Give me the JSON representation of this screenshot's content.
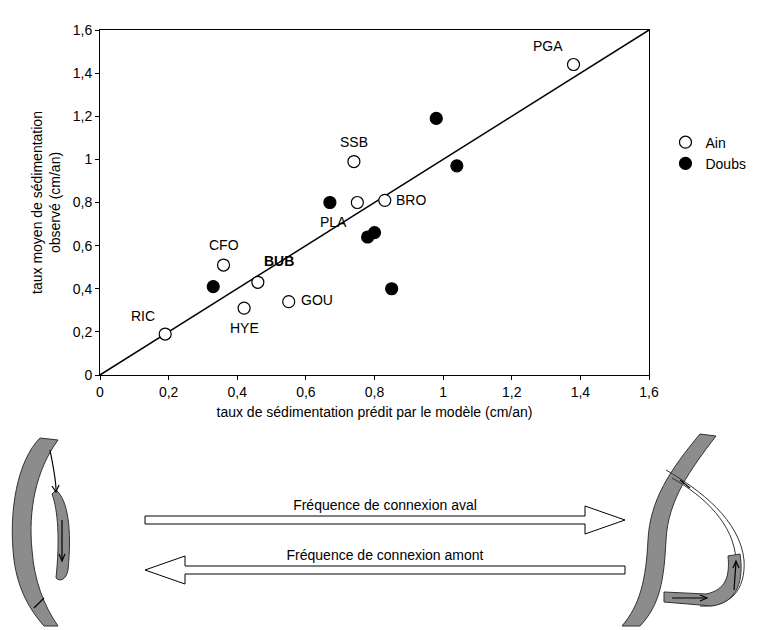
{
  "chart_data": {
    "type": "scatter",
    "x_label": "taux de sédimentation prédit par le modèle (cm/an)",
    "y_label": "taux moyen de sédimentation observé (cm/an)",
    "xlim": [
      0,
      1.6
    ],
    "ylim": [
      0,
      1.6
    ],
    "xticks": [
      0,
      {
        "value": 0.2,
        "label": "0,2"
      },
      {
        "value": 0.4,
        "label": "0,4"
      },
      {
        "value": 0.6,
        "label": "0,6"
      },
      {
        "value": 0.8,
        "label": "0,8"
      },
      1,
      {
        "value": 1.2,
        "label": "1,2"
      },
      {
        "value": 1.4,
        "label": "1,4"
      },
      {
        "value": 1.6,
        "label": "1,6"
      }
    ],
    "yticks": [
      0,
      {
        "value": 0.2,
        "label": "0,2"
      },
      {
        "value": 0.4,
        "label": "0,4"
      },
      {
        "value": 0.6,
        "label": "0,6"
      },
      {
        "value": 0.8,
        "label": "0,8"
      },
      1,
      {
        "value": 1.2,
        "label": "1,2"
      },
      {
        "value": 1.4,
        "label": "1,4"
      },
      {
        "value": 1.6,
        "label": "1,6"
      }
    ],
    "grid": false,
    "legend": "right",
    "reference_line": {
      "x": [
        0,
        1.6
      ],
      "y": [
        0,
        1.6
      ],
      "color": "#000000"
    },
    "series": [
      {
        "name": "Ain",
        "marker": "open_circle",
        "color": "#000000",
        "x": [
          1.38,
          0.74,
          0.75,
          0.83,
          0.36,
          0.46,
          0.42,
          0.55,
          0.19
        ],
        "values": [
          1.44,
          0.99,
          0.8,
          0.81,
          0.51,
          0.43,
          0.31,
          0.34,
          0.19
        ],
        "labels": [
          "PGA",
          "SSB",
          "PLA",
          "BRO",
          "CFO",
          "BUB",
          "HYE",
          "GOU",
          "RIC"
        ]
      },
      {
        "name": "Doubs",
        "marker": "filled_circle",
        "color": "#000000",
        "x": [
          0.98,
          1.04,
          0.67,
          0.8,
          0.78,
          0.85,
          0.33
        ],
        "values": [
          1.19,
          0.97,
          0.8,
          0.66,
          0.64,
          0.4,
          0.41
        ]
      }
    ]
  },
  "diagram": {
    "arrows": [
      {
        "label": "Fréquence de connexion aval",
        "direction": "right"
      },
      {
        "label": "Fréquence de connexion amont",
        "direction": "left"
      }
    ]
  }
}
